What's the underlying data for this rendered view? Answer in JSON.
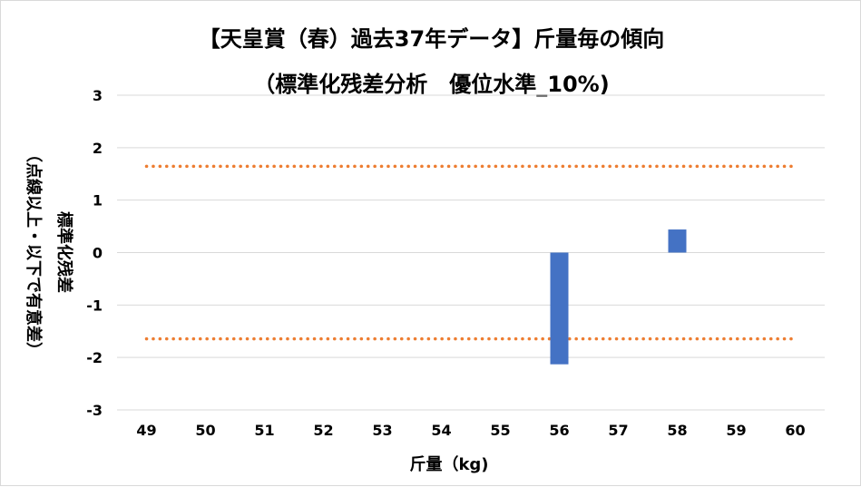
{
  "chart_data": {
    "type": "bar",
    "title": "【天皇賞（春）過去37年データ】斤量毎の傾向",
    "subtitle": "（標準化残差分析　優位水準_10%)",
    "xlabel": "斤量（kg)",
    "ylabel_main": "標準化残差",
    "ylabel_note": "（点線以上・以下で有意差）",
    "categories": [
      "49",
      "50",
      "51",
      "52",
      "53",
      "54",
      "55",
      "56",
      "57",
      "58",
      "59",
      "60"
    ],
    "values": [
      null,
      null,
      null,
      null,
      null,
      null,
      null,
      -2.13,
      null,
      0.44,
      null,
      null
    ],
    "ylim": [
      -3,
      3
    ],
    "yticks": [
      3,
      2,
      1,
      0,
      -1,
      -2,
      -3
    ],
    "threshold_lines": [
      1.645,
      -1.645
    ],
    "grid": true,
    "colors": {
      "bar": "#4472c4",
      "threshold": "#ed7d31",
      "grid": "#d9d9d9"
    }
  }
}
